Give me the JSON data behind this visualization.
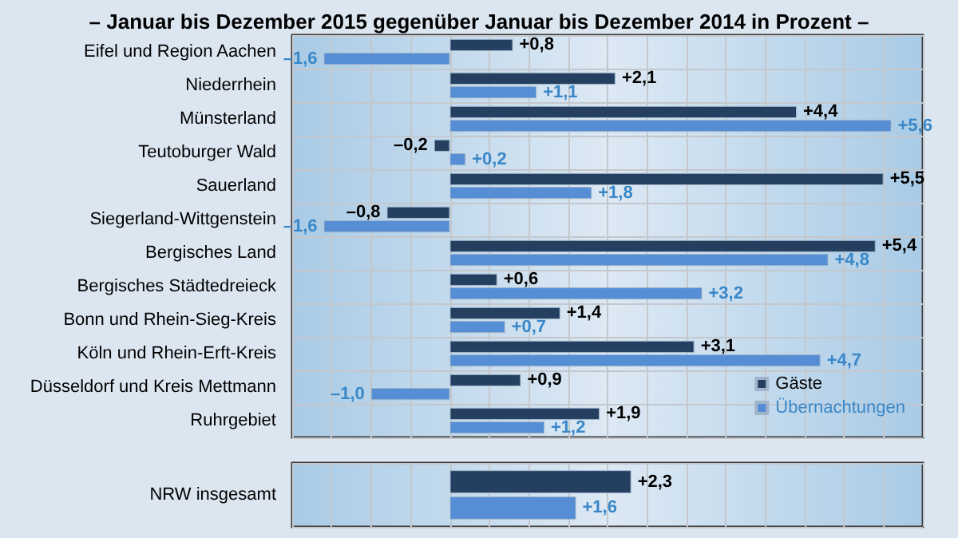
{
  "chart_data": [
    {
      "type": "bar",
      "orientation": "horizontal",
      "title": "– Januar bis Dezember 2015 gegenüber Januar bis Dezember 2014 in Prozent –",
      "categories": [
        "Eifel und Region Aachen",
        "Niederrhein",
        "Münsterland",
        "Teutoburger Wald",
        "Sauerland",
        "Siegerland-Wittgenstein",
        "Bergisches Land",
        "Bergisches Städtedreieck",
        "Bonn und Rhein-Sieg-Kreis",
        "Köln und Rhein-Erft-Kreis",
        "Düsseldorf und Kreis Mettmann",
        "Ruhrgebiet"
      ],
      "series": [
        {
          "name": "Gäste",
          "color": "#243f60",
          "values": [
            0.8,
            2.1,
            4.4,
            -0.2,
            5.5,
            -0.8,
            5.4,
            0.6,
            1.4,
            3.1,
            0.9,
            1.9
          ],
          "value_labels": [
            "+0,8",
            "+2,1",
            "+4,4",
            "–0,2",
            "+5,5",
            "–0,8",
            "+5,4",
            "+0,6",
            "+1,4",
            "+3,1",
            "+0,9",
            "+1,9"
          ]
        },
        {
          "name": "Übernachtungen",
          "color": "#558ed5",
          "values": [
            -1.6,
            1.1,
            5.6,
            0.2,
            1.8,
            -1.6,
            4.8,
            3.2,
            0.7,
            4.7,
            -1.0,
            1.2
          ],
          "value_labels": [
            "–1,6",
            "+1,1",
            "+5,6",
            "+0,2",
            "+1,8",
            "–1,6",
            "+4,8",
            "+3,2",
            "+0,7",
            "+4,7",
            "–1,0",
            "+1,2"
          ]
        }
      ],
      "xlim": [
        -2,
        6
      ],
      "xticks": [
        {
          "value": -2,
          "label": null
        },
        {
          "value": -1.5,
          "label": null
        },
        {
          "value": -1,
          "label": null
        },
        {
          "value": -0.5,
          "label": null
        },
        {
          "value": 0,
          "label": null
        },
        {
          "value": 0.5,
          "label": null
        },
        {
          "value": 1,
          "label": null
        },
        {
          "value": 1.5,
          "label": null
        },
        {
          "value": 2,
          "label": null
        },
        {
          "value": 2.5,
          "label": null
        },
        {
          "value": 3,
          "label": null
        },
        {
          "value": 3.5,
          "label": null
        },
        {
          "value": 4,
          "label": null
        },
        {
          "value": 4.5,
          "label": null
        },
        {
          "value": 5,
          "label": null
        },
        {
          "value": 5.5,
          "label": null
        },
        {
          "value": 6,
          "label": null
        }
      ],
      "tick_labels": false,
      "grid": true,
      "legend": "bottom right"
    },
    {
      "type": "bar",
      "orientation": "horizontal",
      "categories": [
        "NRW insgesamt"
      ],
      "series": [
        {
          "color": "#243f60",
          "values": [
            2.3
          ],
          "value_labels": [
            "+2,3"
          ]
        },
        {
          "color": "#558ed5",
          "values": [
            1.6
          ],
          "value_labels": [
            "+1,6"
          ]
        }
      ],
      "xlim": [
        -2,
        6
      ],
      "xticks": [
        {
          "value": -2,
          "label": null
        },
        {
          "value": -1.5,
          "label": null
        },
        {
          "value": -1,
          "label": null
        },
        {
          "value": -0.5,
          "label": null
        },
        {
          "value": 0,
          "label": null
        },
        {
          "value": 0.5,
          "label": null
        },
        {
          "value": 1,
          "label": null
        },
        {
          "value": 1.5,
          "label": null
        },
        {
          "value": 2,
          "label": null
        },
        {
          "value": 2.5,
          "label": null
        },
        {
          "value": 3,
          "label": null
        },
        {
          "value": 3.5,
          "label": null
        },
        {
          "value": 4,
          "label": null
        },
        {
          "value": 4.5,
          "label": null
        },
        {
          "value": 5,
          "label": null
        },
        {
          "value": 5.5,
          "label": null
        },
        {
          "value": 6,
          "label": null
        }
      ],
      "tick_labels": false,
      "grid": true
    }
  ]
}
